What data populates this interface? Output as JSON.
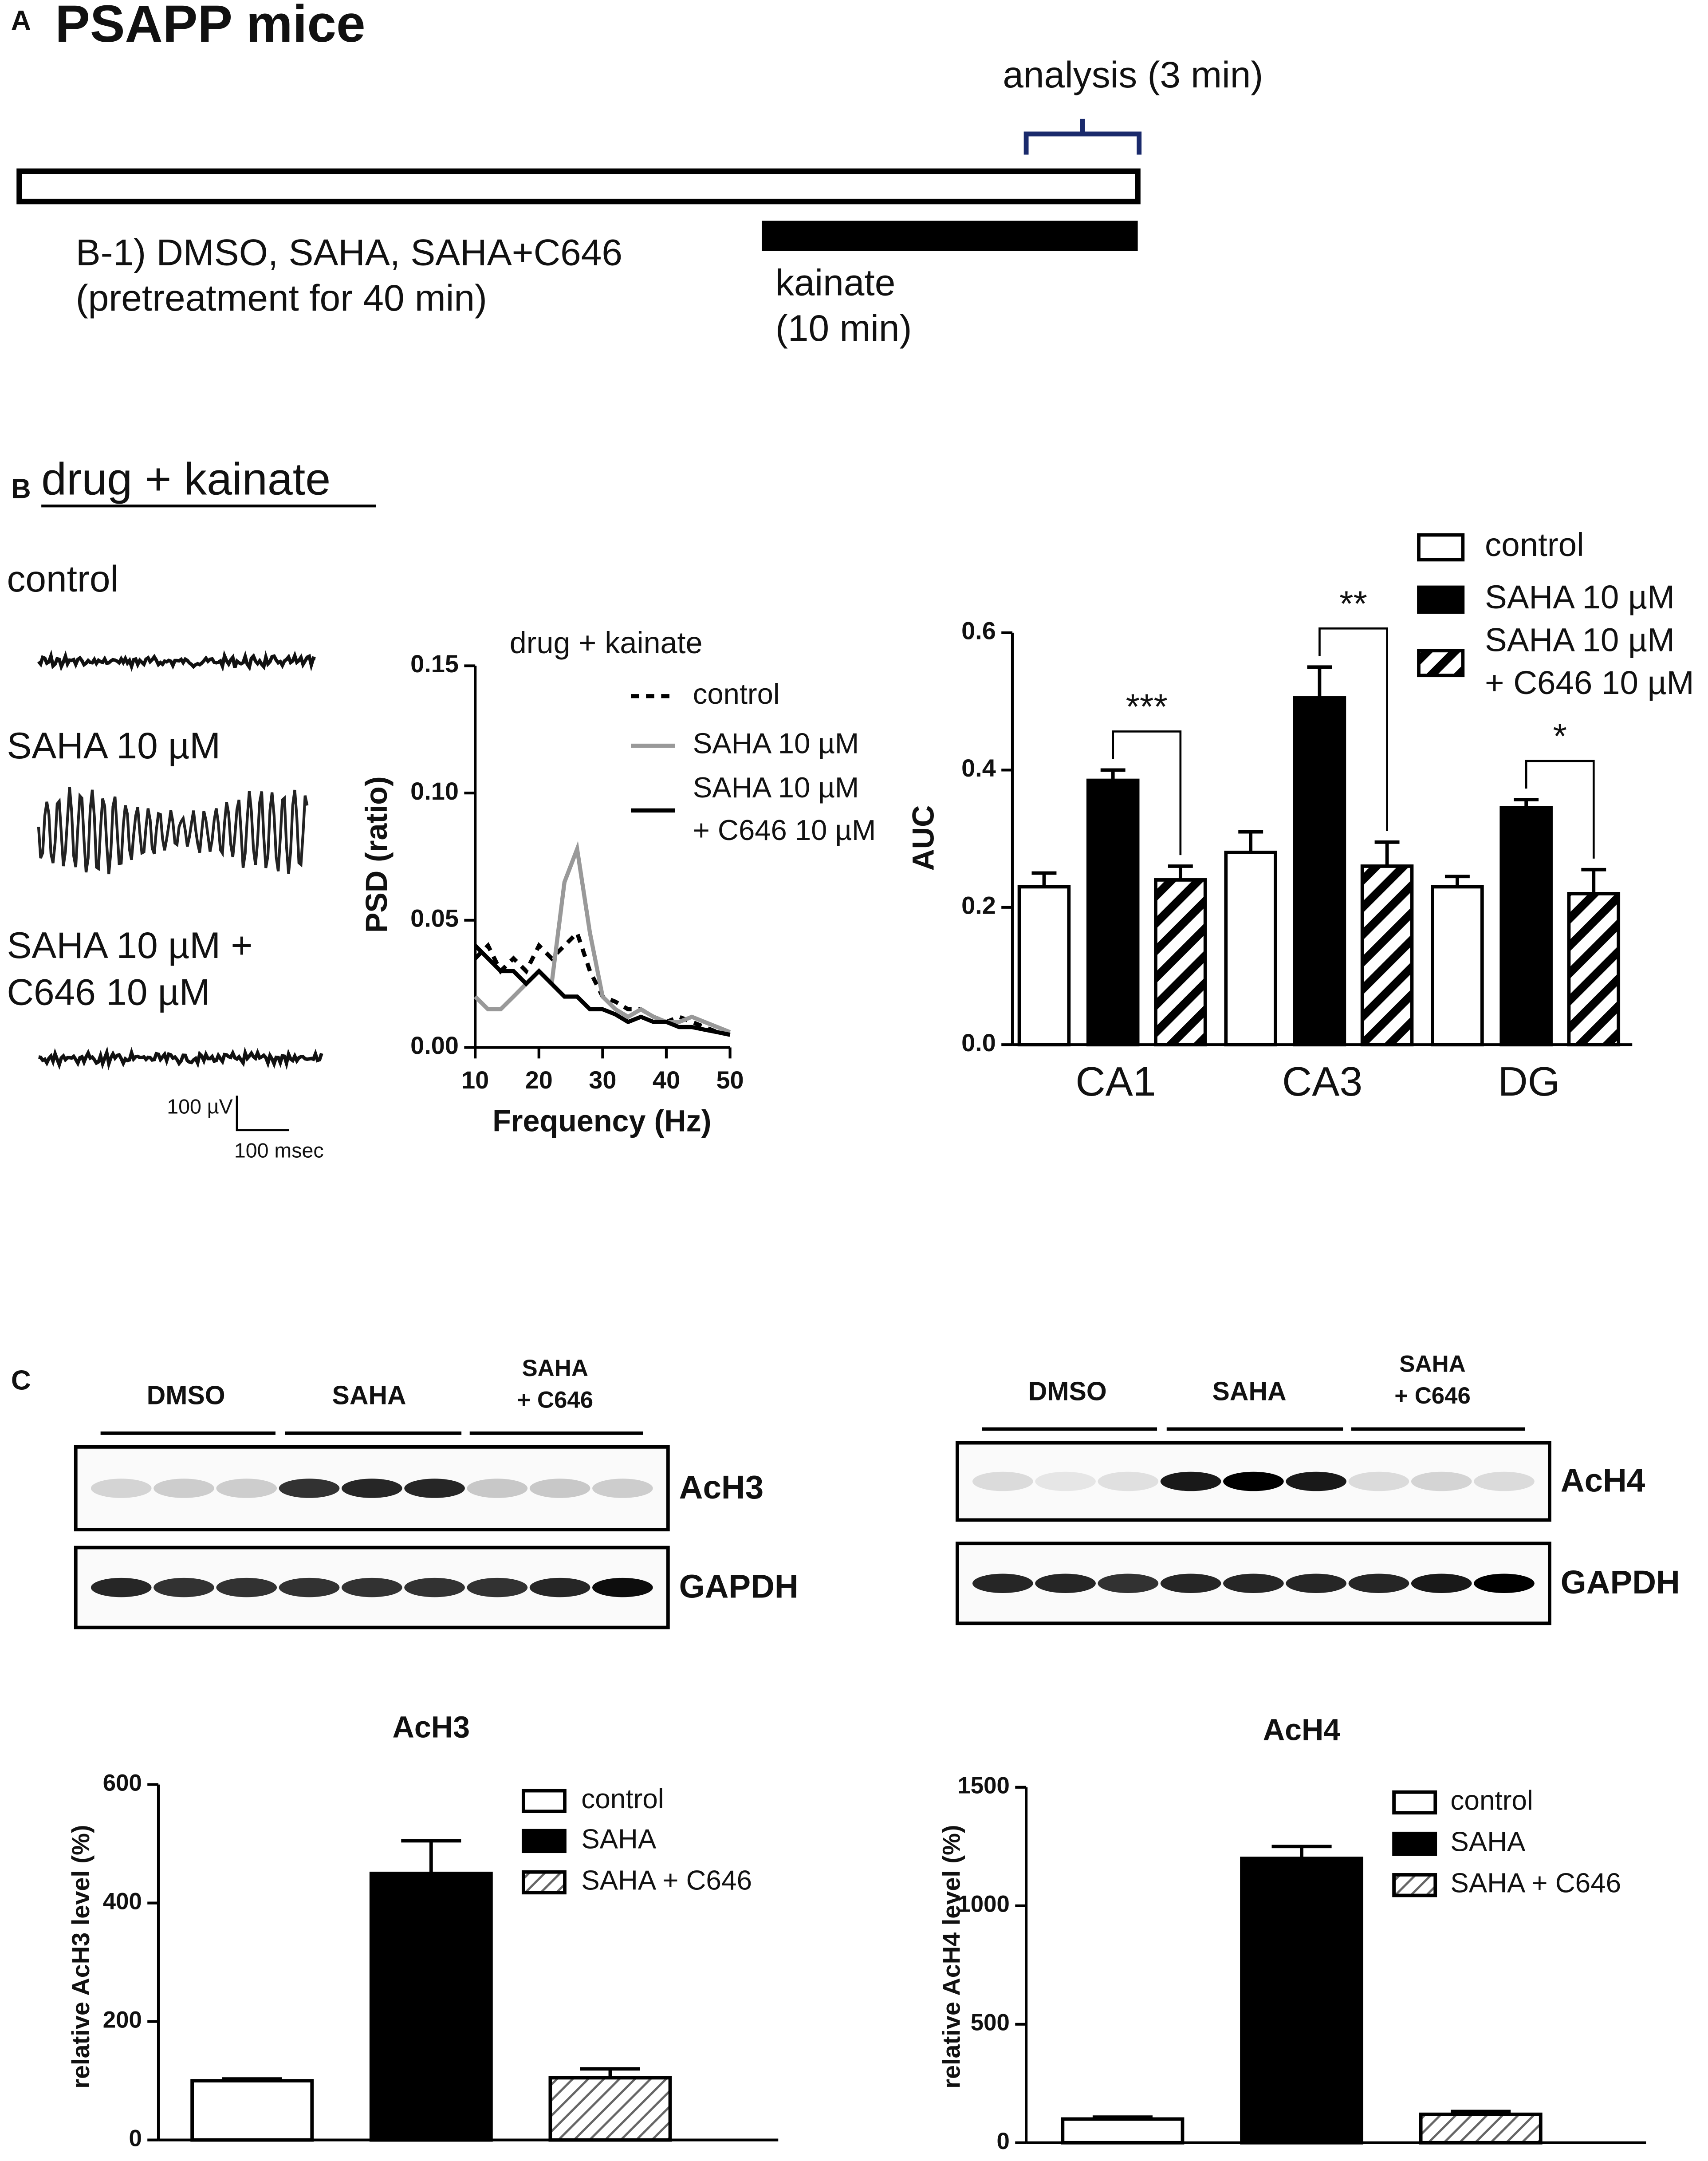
{
  "panel_a": {
    "label": "A",
    "title": "PSAPP mice",
    "analysis": "analysis (3 min)",
    "pretreatment": [
      "B-1) DMSO, SAHA, SAHA+C646",
      "(pretreatment   for 40 min)"
    ],
    "kainate": [
      "kainate",
      "(10 min)"
    ]
  },
  "panel_b": {
    "label": "B",
    "title": "drug  + kainate",
    "traces": [
      "control",
      "SAHA 10 µM",
      "SAHA 10 µM +",
      "C646 10 µM"
    ],
    "scale_v": "100 µV",
    "scale_t": "100 msec"
  },
  "panel_c": {
    "label": "C",
    "blots": [
      {
        "groups": [
          "DMSO",
          "SAHA",
          "SAHA",
          "+ C646"
        ],
        "bands": [
          "AcH3",
          "GAPDH"
        ]
      },
      {
        "groups": [
          "DMSO",
          "SAHA",
          "SAHA",
          "+ C646"
        ],
        "bands": [
          "AcH4",
          "GAPDH"
        ]
      }
    ]
  },
  "chart_data": [
    {
      "type": "line",
      "title": "drug + kainate",
      "xlabel": "Frequency (Hz)",
      "ylabel": "PSD (ratio)",
      "x": [
        10,
        12,
        14,
        16,
        18,
        20,
        22,
        24,
        26,
        28,
        30,
        32,
        34,
        36,
        38,
        40,
        42,
        44,
        46,
        48,
        50
      ],
      "xlim": [
        10,
        50
      ],
      "xticks": [
        10,
        20,
        30,
        40,
        50
      ],
      "ylim": [
        0,
        0.15
      ],
      "yticks": [
        {
          "value": 0,
          "label": "0.00"
        },
        0.05,
        {
          "value": 0.1,
          "label": "0.10"
        },
        0.15
      ],
      "series": [
        {
          "name": "control",
          "color": "#000000",
          "line_style": "dashed",
          "values": [
            0.035,
            0.04,
            0.03,
            0.035,
            0.03,
            0.04,
            0.035,
            0.04,
            0.045,
            0.03,
            0.02,
            0.018,
            0.015,
            0.015,
            0.012,
            0.01,
            0.012,
            0.01,
            0.008,
            0.006,
            0.005
          ]
        },
        {
          "name": "SAHA 10 µM",
          "color": "#999999",
          "line_style": "solid",
          "values": [
            0.02,
            0.015,
            0.015,
            0.02,
            0.025,
            0.03,
            0.025,
            0.065,
            0.078,
            0.045,
            0.02,
            0.015,
            0.012,
            0.015,
            0.012,
            0.01,
            0.01,
            0.012,
            0.01,
            0.008,
            0.006
          ]
        },
        {
          "name": "SAHA 10 µM + C646 10 µM",
          "color": "#000000",
          "line_style": "solid",
          "values": [
            0.04,
            0.035,
            0.03,
            0.03,
            0.025,
            0.03,
            0.025,
            0.02,
            0.02,
            0.015,
            0.015,
            0.013,
            0.01,
            0.012,
            0.01,
            0.01,
            0.008,
            0.008,
            0.007,
            0.006,
            0.005
          ]
        }
      ]
    },
    {
      "type": "bar",
      "ylabel": "AUC",
      "categories": [
        "CA1",
        "CA3",
        "DG"
      ],
      "ylim": [
        0,
        0.6
      ],
      "yticks": [
        {
          "value": 0,
          "label": "0.0"
        },
        0.2,
        0.4,
        0.6
      ],
      "significance": [
        "***",
        "**",
        "*"
      ],
      "series": [
        {
          "name": "control",
          "color": "#ffffff",
          "values": [
            0.23,
            0.28,
            0.23
          ],
          "errors": [
            0.02,
            0.03,
            0.015
          ]
        },
        {
          "name": "SAHA 10 µM",
          "color": "#000000",
          "values": [
            0.385,
            0.505,
            0.345
          ],
          "errors": [
            0.015,
            0.045,
            0.012
          ]
        },
        {
          "name": "SAHA 10 µM + C646 10 µM",
          "color": "#000000",
          "pattern": "hatch",
          "values": [
            0.24,
            0.26,
            0.22
          ],
          "errors": [
            0.02,
            0.035,
            0.035
          ]
        }
      ]
    },
    {
      "type": "bar",
      "title": "AcH3",
      "ylabel": "relative AcH3 level (%)",
      "categories": [
        null
      ],
      "ylim": [
        0,
        600
      ],
      "yticks": [
        0,
        200,
        400,
        600
      ],
      "series": [
        {
          "name": "control",
          "color": "#ffffff",
          "values": [
            100
          ],
          "errors": [
            3
          ]
        },
        {
          "name": "SAHA",
          "color": "#000000",
          "values": [
            450
          ],
          "errors": [
            55
          ]
        },
        {
          "name": "SAHA + C646",
          "color": "#555555",
          "pattern": "hatch",
          "values": [
            105
          ],
          "errors": [
            15
          ]
        }
      ]
    },
    {
      "type": "bar",
      "title": "AcH4",
      "ylabel": "relative AcH4 level (%)",
      "categories": [
        null
      ],
      "ylim": [
        0,
        1500
      ],
      "yticks": [
        0,
        500,
        1000,
        1500
      ],
      "series": [
        {
          "name": "control",
          "color": "#ffffff",
          "values": [
            100
          ],
          "errors": [
            8
          ]
        },
        {
          "name": "SAHA",
          "color": "#000000",
          "values": [
            1200
          ],
          "errors": [
            50
          ]
        },
        {
          "name": "SAHA + C646",
          "color": "#555555",
          "pattern": "hatch",
          "values": [
            120
          ],
          "errors": [
            12
          ]
        }
      ]
    }
  ]
}
